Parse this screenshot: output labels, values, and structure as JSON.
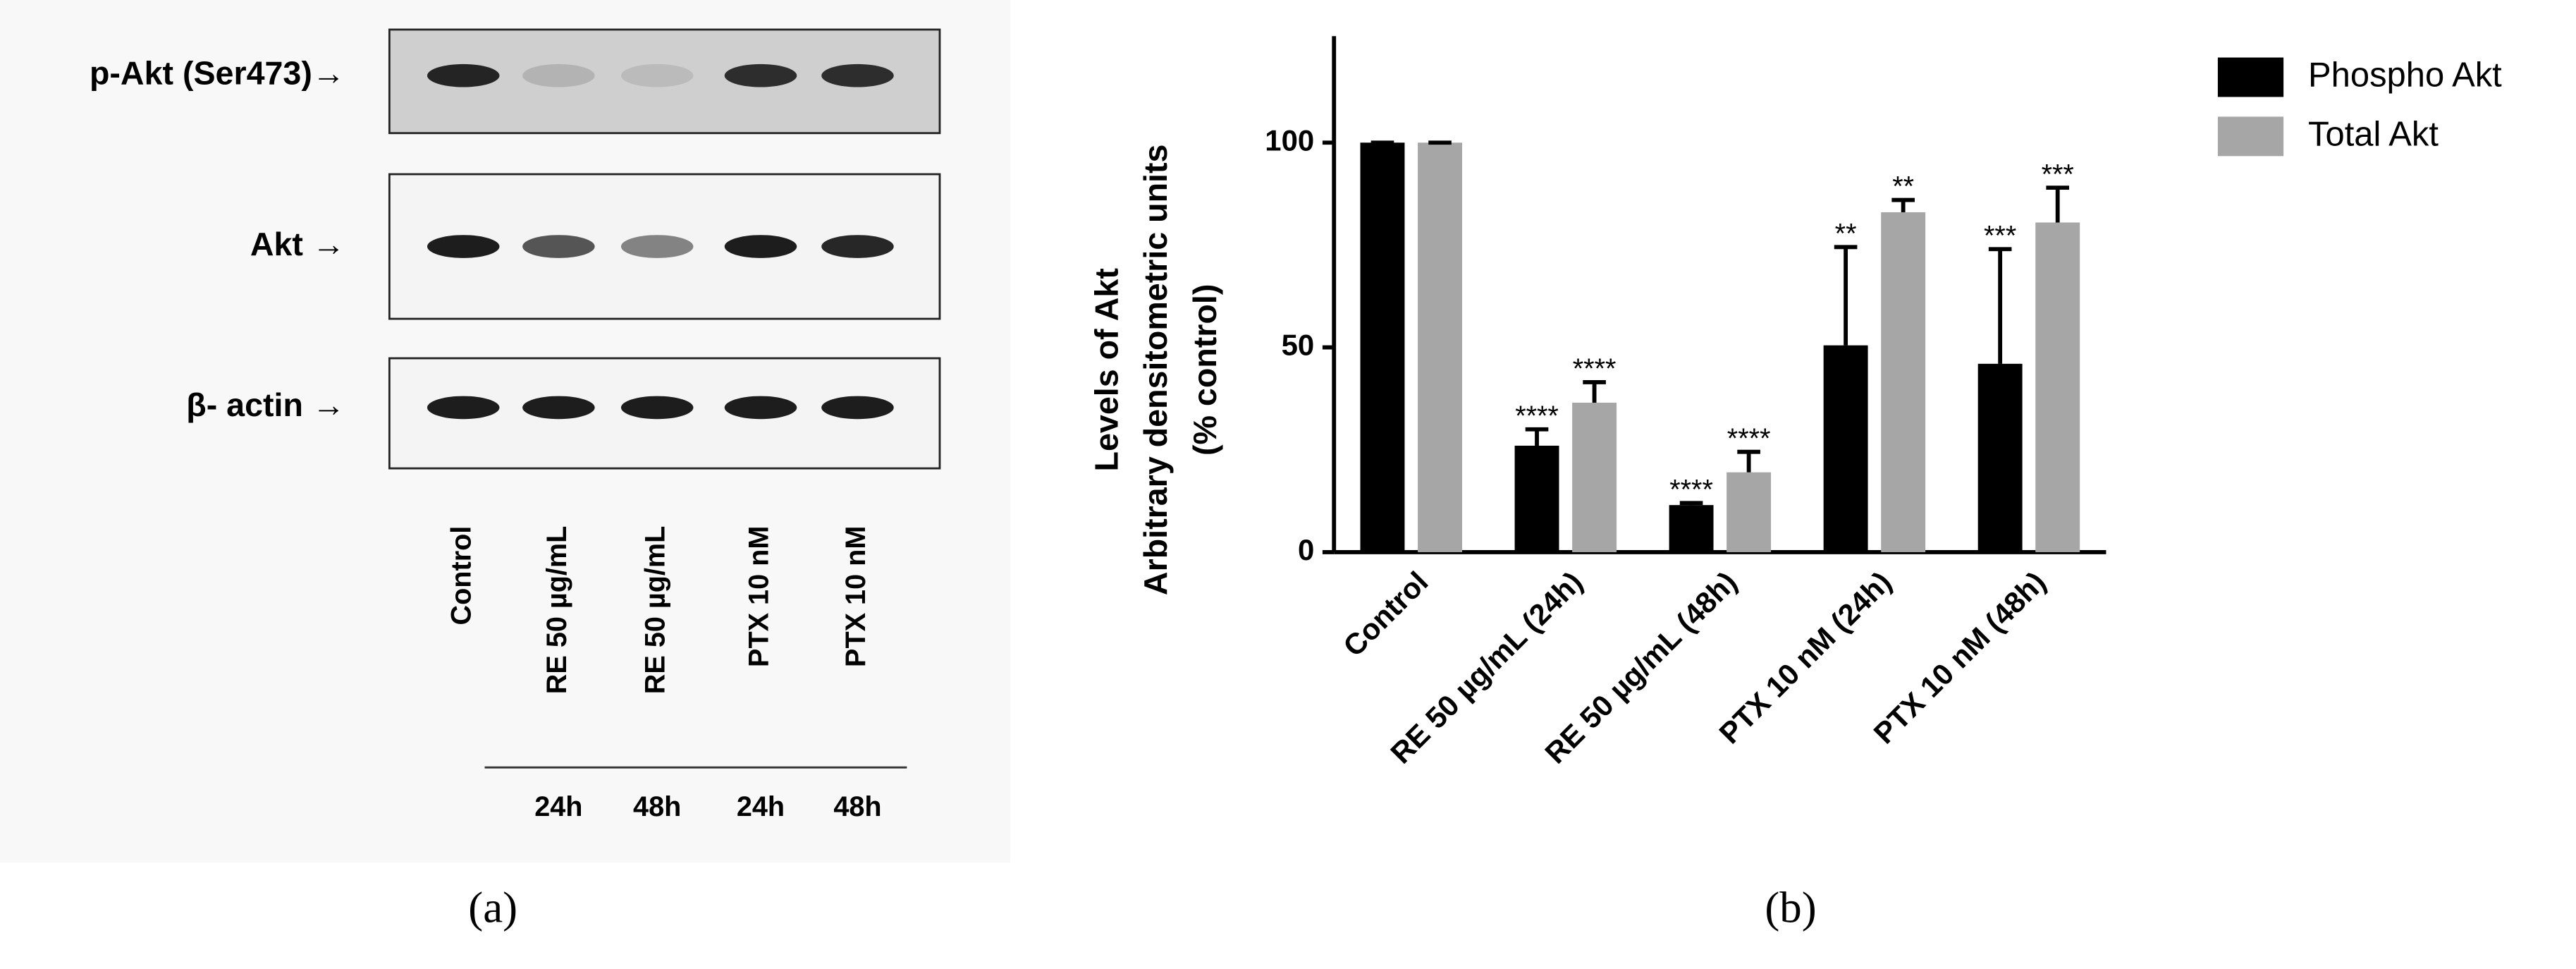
{
  "blot": {
    "rows": [
      "p-Akt (Ser473)→",
      "Akt →",
      "β- actin →"
    ],
    "lanes": [
      "Control",
      "RE 50 µg/mL",
      "RE 50 µg/mL",
      "PTX 10 nM",
      "PTX 10 nM"
    ],
    "times": [
      "24h",
      "48h",
      "24h",
      "48h"
    ]
  },
  "panel_labels": [
    "(a)",
    "(b)"
  ],
  "chart_data": {
    "type": "bar",
    "y_label": [
      "Levels of Akt",
      "Arbitrary densitometric units",
      "(% control)"
    ],
    "categories": [
      "Control",
      "RE 50 µg/mL (24h)",
      "RE 50 µg/mL  (48h)",
      "PTX 10 nM (24h)",
      "PTX 10 nM (48h)"
    ],
    "series": [
      {
        "name": "Phospho Akt",
        "color": "#000000",
        "values": [
          100,
          26,
          11.5,
          50.5,
          46
        ],
        "errors": [
          0,
          4,
          0.5,
          24,
          28
        ],
        "annotations": [
          null,
          "****",
          "****",
          "**",
          "***"
        ]
      },
      {
        "name": "Total Akt",
        "color": "#a6a6a6",
        "values": [
          100,
          36.5,
          19.5,
          83,
          80.5
        ],
        "errors": [
          0,
          5,
          5,
          3,
          8.5
        ],
        "annotations": [
          null,
          "****",
          "****",
          "**",
          "***"
        ]
      }
    ],
    "ylim": [
      0,
      126
    ],
    "yticks": [
      0,
      50,
      100
    ],
    "legend": "top-right"
  }
}
